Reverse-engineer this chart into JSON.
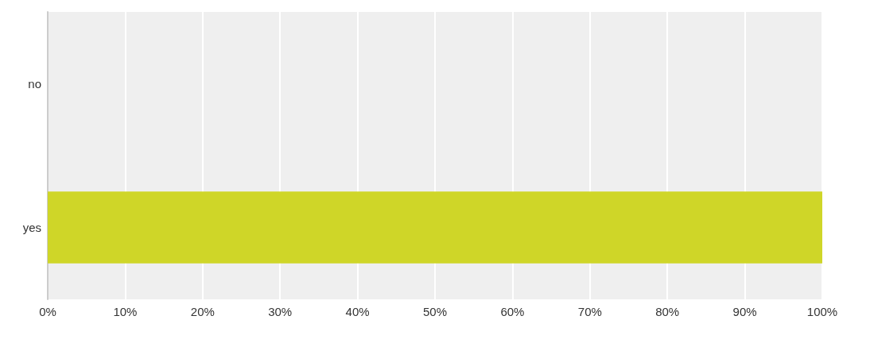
{
  "chart_data": {
    "type": "bar",
    "orientation": "horizontal",
    "categories": [
      "no",
      "yes"
    ],
    "values": [
      0,
      100
    ],
    "colors": [
      "#cccccc",
      "#cfd628"
    ],
    "xlim": [
      0,
      100
    ],
    "xticks": [
      {
        "value": 0,
        "label": "0%"
      },
      {
        "value": 10,
        "label": "10%"
      },
      {
        "value": 20,
        "label": "20%"
      },
      {
        "value": 30,
        "label": "30%"
      },
      {
        "value": 40,
        "label": "40%"
      },
      {
        "value": 50,
        "label": "50%"
      },
      {
        "value": 60,
        "label": "60%"
      },
      {
        "value": 70,
        "label": "70%"
      },
      {
        "value": 80,
        "label": "80%"
      },
      {
        "value": 90,
        "label": "90%"
      },
      {
        "value": 100,
        "label": "100%"
      }
    ],
    "grid": "x"
  }
}
